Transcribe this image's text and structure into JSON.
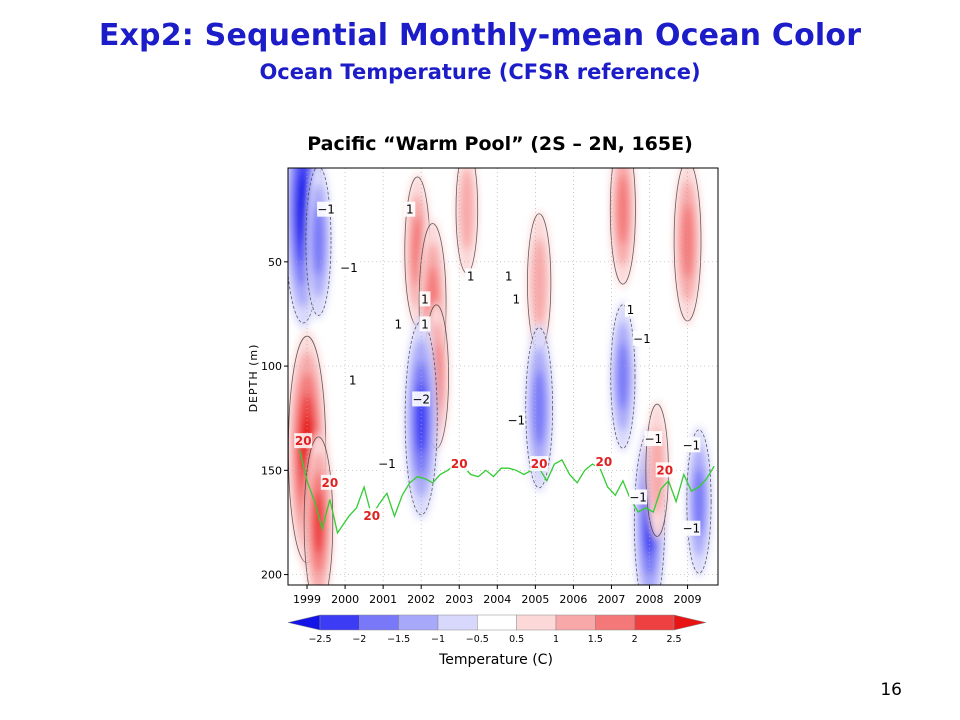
{
  "slide": {
    "title": "Exp2:  Sequential Monthly-mean Ocean Color",
    "subtitle": "Ocean Temperature  (CFSR reference)",
    "page_number": "16"
  },
  "colors": {
    "title": "#1c1cc8",
    "isotherm": "#33cc33",
    "isotherm_label": "#e02020",
    "contour": "#222222"
  },
  "chart_data": {
    "type": "heatmap",
    "title": "Pacific “Warm Pool” (2S – 2N, 165E)",
    "xlabel": "",
    "ylabel": "DEPTH  (m)",
    "x_ticks": [
      "1999",
      "2000",
      "2001",
      "2002",
      "2003",
      "2004",
      "2005",
      "2006",
      "2007",
      "2008",
      "2009"
    ],
    "x_range": [
      1998.5,
      2009.8
    ],
    "y_ticks": [
      50,
      100,
      150,
      200
    ],
    "y_range": [
      5,
      205
    ],
    "y_inverted": true,
    "grid": true,
    "colorbar": {
      "label": "Temperature (C)",
      "levels": [
        -2.5,
        -2,
        -1.5,
        -1,
        -0.5,
        0.5,
        1,
        1.5,
        2,
        2.5
      ],
      "level_labels": [
        "−2.5",
        "−2",
        "−1.5",
        "−1",
        "−0.5",
        "0.5",
        "1",
        "1.5",
        "2",
        "2.5"
      ],
      "colors": [
        "#1414e6",
        "#3c3cf5",
        "#7878f8",
        "#a8a8fa",
        "#d8d8fc",
        "#ffffff",
        "#fcd8d8",
        "#f8a8a8",
        "#f47878",
        "#ee4040",
        "#e61414"
      ]
    },
    "anomaly_features": [
      {
        "t": 1998.9,
        "z": 25,
        "value": -2.8
      },
      {
        "t": 1999.3,
        "z": 40,
        "value": -1.4
      },
      {
        "t": 1999.0,
        "z": 140,
        "value": 2.8
      },
      {
        "t": 1999.3,
        "z": 175,
        "value": 1.8
      },
      {
        "t": 2001.9,
        "z": 45,
        "value": 1.4
      },
      {
        "t": 2002.3,
        "z": 70,
        "value": 1.6
      },
      {
        "t": 2002.4,
        "z": 105,
        "value": 1.3
      },
      {
        "t": 2002.0,
        "z": 125,
        "value": -2.2
      },
      {
        "t": 2003.2,
        "z": 25,
        "value": 1.0
      },
      {
        "t": 2005.1,
        "z": 60,
        "value": 1.2
      },
      {
        "t": 2005.1,
        "z": 120,
        "value": -1.6
      },
      {
        "t": 2007.3,
        "z": 25,
        "value": 1.4
      },
      {
        "t": 2007.3,
        "z": 105,
        "value": -1.3
      },
      {
        "t": 2008.0,
        "z": 175,
        "value": -2.0
      },
      {
        "t": 2008.2,
        "z": 150,
        "value": 1.1
      },
      {
        "t": 2009.0,
        "z": 40,
        "value": 1.6
      },
      {
        "t": 2009.3,
        "z": 165,
        "value": -1.3
      }
    ],
    "contour_labels": [
      {
        "t": 1999.5,
        "z": 25,
        "text": "−1"
      },
      {
        "t": 2000.1,
        "z": 53,
        "text": "−1"
      },
      {
        "t": 2001.7,
        "z": 25,
        "text": "1"
      },
      {
        "t": 2003.3,
        "z": 57,
        "text": "1"
      },
      {
        "t": 2004.3,
        "z": 57,
        "text": "1"
      },
      {
        "t": 2004.5,
        "z": 68,
        "text": "1"
      },
      {
        "t": 2002.1,
        "z": 68,
        "text": "1"
      },
      {
        "t": 2001.4,
        "z": 80,
        "text": "1"
      },
      {
        "t": 2002.1,
        "z": 80,
        "text": "1"
      },
      {
        "t": 2000.2,
        "z": 107,
        "text": "1"
      },
      {
        "t": 2002.0,
        "z": 116,
        "text": "−2"
      },
      {
        "t": 2001.1,
        "z": 147,
        "text": "−1"
      },
      {
        "t": 2004.5,
        "z": 126,
        "text": "−1"
      },
      {
        "t": 2007.5,
        "z": 73,
        "text": "1"
      },
      {
        "t": 2007.8,
        "z": 87,
        "text": "−1"
      },
      {
        "t": 2008.1,
        "z": 135,
        "text": "−1"
      },
      {
        "t": 2009.1,
        "z": 138,
        "text": "−1"
      },
      {
        "t": 2007.7,
        "z": 163,
        "text": "−1"
      },
      {
        "t": 2009.1,
        "z": 178,
        "text": "−1"
      }
    ],
    "isotherm_20C": {
      "label": "20",
      "points": [
        [
          1998.8,
          140
        ],
        [
          1999.0,
          155
        ],
        [
          1999.2,
          165
        ],
        [
          1999.4,
          178
        ],
        [
          1999.6,
          164
        ],
        [
          1999.8,
          180
        ],
        [
          2000.1,
          172
        ],
        [
          2000.3,
          168
        ],
        [
          2000.5,
          158
        ],
        [
          2000.7,
          172
        ],
        [
          2000.9,
          166
        ],
        [
          2001.1,
          161
        ],
        [
          2001.3,
          172
        ],
        [
          2001.5,
          162
        ],
        [
          2001.7,
          156
        ],
        [
          2001.9,
          153
        ],
        [
          2002.1,
          154
        ],
        [
          2002.3,
          156
        ],
        [
          2002.5,
          152
        ],
        [
          2002.7,
          150
        ],
        [
          2002.9,
          147
        ],
        [
          2003.1,
          148
        ],
        [
          2003.3,
          152
        ],
        [
          2003.5,
          153
        ],
        [
          2003.7,
          150
        ],
        [
          2003.9,
          153
        ],
        [
          2004.1,
          149
        ],
        [
          2004.3,
          149
        ],
        [
          2004.5,
          150
        ],
        [
          2004.7,
          152
        ],
        [
          2004.9,
          150
        ],
        [
          2005.1,
          149
        ],
        [
          2005.3,
          155
        ],
        [
          2005.5,
          147
        ],
        [
          2005.7,
          145
        ],
        [
          2005.9,
          152
        ],
        [
          2006.1,
          156
        ],
        [
          2006.3,
          150
        ],
        [
          2006.5,
          147
        ],
        [
          2006.7,
          149
        ],
        [
          2006.9,
          158
        ],
        [
          2007.1,
          162
        ],
        [
          2007.3,
          155
        ],
        [
          2007.5,
          164
        ],
        [
          2007.7,
          170
        ],
        [
          2007.9,
          168
        ],
        [
          2008.1,
          170
        ],
        [
          2008.3,
          159
        ],
        [
          2008.5,
          155
        ],
        [
          2008.7,
          165
        ],
        [
          2008.9,
          152
        ],
        [
          2009.1,
          160
        ],
        [
          2009.3,
          158
        ],
        [
          2009.5,
          154
        ],
        [
          2009.7,
          148
        ]
      ],
      "label_positions": [
        [
          1998.9,
          136
        ],
        [
          1999.6,
          156
        ],
        [
          2000.7,
          172
        ],
        [
          2003.0,
          147
        ],
        [
          2005.1,
          147
        ],
        [
          2006.8,
          146
        ],
        [
          2008.4,
          150
        ]
      ]
    }
  }
}
